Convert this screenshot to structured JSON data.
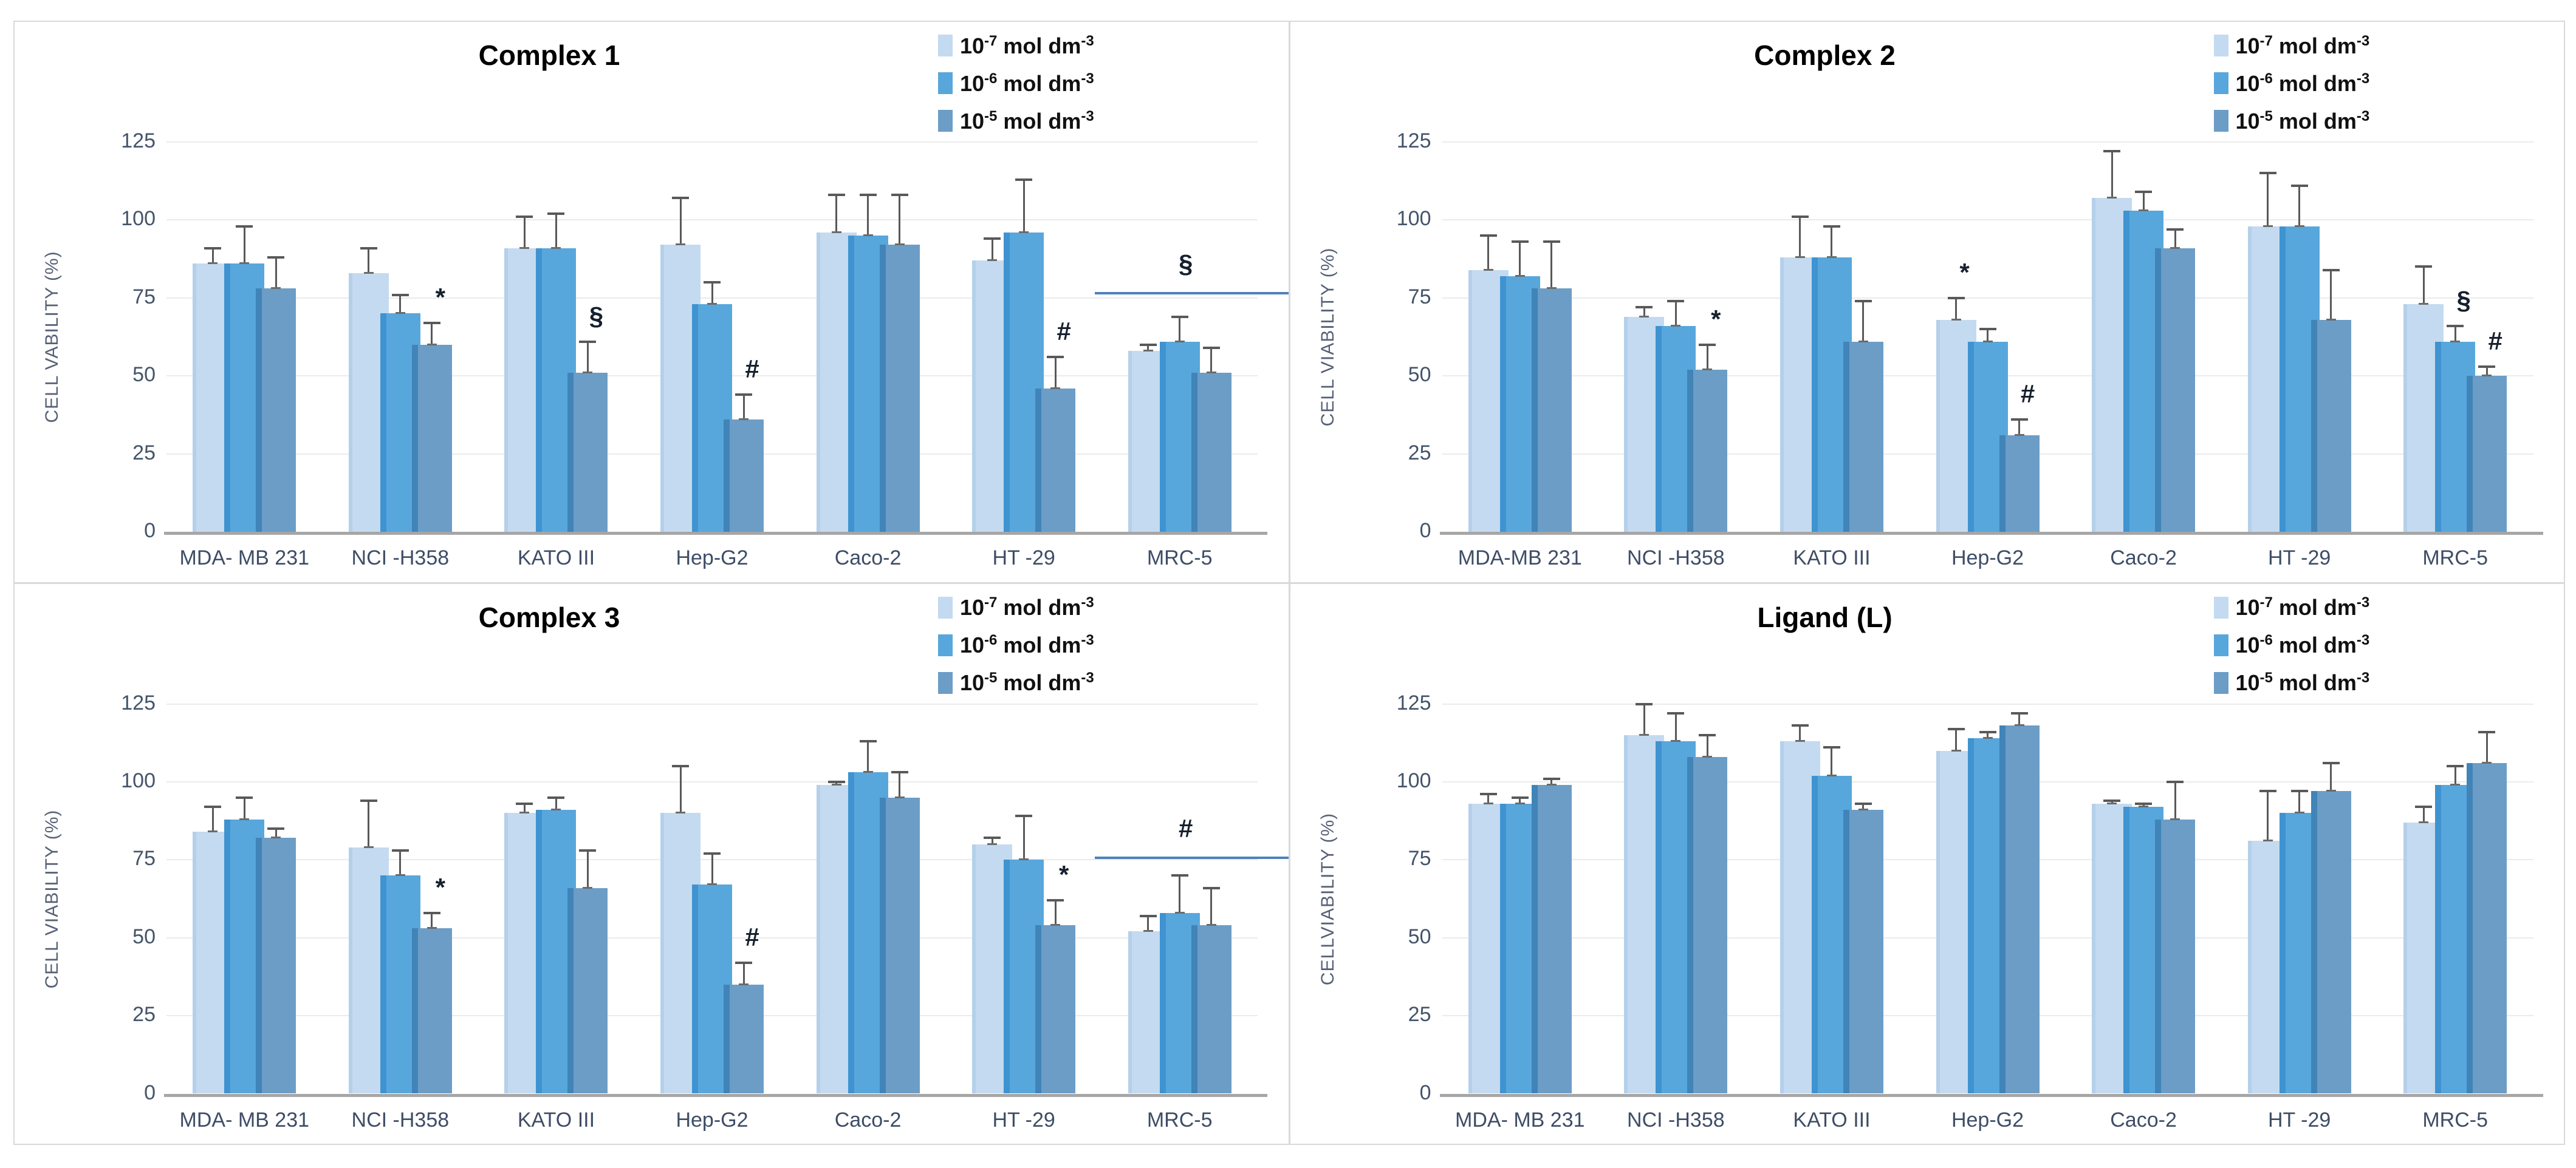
{
  "figure": {
    "layout": {
      "grid": "2x2",
      "legend_position": "top-right",
      "grid_on": true,
      "colors": {
        "series_1": "#C4DAF0",
        "series_2": "#58A7DC",
        "series_3": "#6C9DC6",
        "gridline": "#EBEBEB",
        "axis_line": "#A6A6A6",
        "error_bar": "#595959",
        "significance_line": "#4F81BD",
        "tick_text": "#44546A",
        "title_text": "#000000"
      },
      "legend_items": [
        {
          "base": "10",
          "exp": "-7",
          "unit": "mol dm",
          "unit_exp": "-3"
        },
        {
          "base": "10",
          "exp": "-6",
          "unit": "mol dm",
          "unit_exp": "-3"
        },
        {
          "base": "10",
          "exp": "-5",
          "unit": "mol dm",
          "unit_exp": "-3"
        }
      ]
    }
  },
  "chart_data": [
    {
      "type": "bar",
      "title": "Complex 1",
      "ylabel": "CELL VABILITY (%)",
      "ylim": [
        0,
        125
      ],
      "yticks": [
        0,
        25,
        50,
        75,
        100,
        125
      ],
      "categories": [
        "MDA- MB 231",
        "NCI -H358",
        "KATO III",
        "Hep-G2",
        "Caco-2",
        "HT -29",
        "MRC-5"
      ],
      "series": [
        {
          "name": "10⁻⁷ mol dm⁻³",
          "values": [
            86,
            83,
            91,
            92,
            96,
            87,
            58
          ],
          "errors": [
            5,
            8,
            10,
            15,
            12,
            7,
            2
          ],
          "ann": [
            null,
            null,
            null,
            null,
            null,
            null,
            null
          ]
        },
        {
          "name": "10⁻⁶ mol dm⁻³",
          "values": [
            86,
            70,
            91,
            73,
            95,
            96,
            61
          ],
          "errors": [
            12,
            6,
            11,
            7,
            13,
            17,
            8
          ],
          "ann": [
            null,
            null,
            null,
            null,
            null,
            null,
            null
          ]
        },
        {
          "name": "10⁻⁵ mol dm⁻³",
          "values": [
            78,
            60,
            51,
            36,
            92,
            46,
            51
          ],
          "errors": [
            10,
            7,
            10,
            8,
            16,
            10,
            8
          ],
          "ann": [
            null,
            "*",
            "§",
            "#",
            null,
            "#",
            null
          ]
        }
      ],
      "group_annotations": [
        {
          "category": "MRC-5",
          "symbol": "§",
          "line_value": 77
        }
      ]
    },
    {
      "type": "bar",
      "title": "Complex 2",
      "ylabel": "CELL VIABILITY (%)",
      "ylim": [
        0,
        125
      ],
      "yticks": [
        0,
        25,
        50,
        75,
        100,
        125
      ],
      "categories": [
        "MDA-MB 231",
        "NCI -H358",
        "KATO III",
        "Hep-G2",
        "Caco-2",
        "HT -29",
        "MRC-5"
      ],
      "series": [
        {
          "name": "10⁻⁷ mol dm⁻³",
          "values": [
            84,
            69,
            88,
            68,
            107,
            98,
            73
          ],
          "errors": [
            11,
            3,
            13,
            7,
            15,
            17,
            12
          ],
          "ann": [
            null,
            null,
            null,
            "*",
            null,
            null,
            null
          ]
        },
        {
          "name": "10⁻⁶ mol dm⁻³",
          "values": [
            82,
            66,
            88,
            61,
            103,
            98,
            61
          ],
          "errors": [
            11,
            8,
            10,
            4,
            6,
            13,
            5
          ],
          "ann": [
            null,
            null,
            null,
            null,
            null,
            null,
            "§"
          ]
        },
        {
          "name": "10⁻⁵ mol dm⁻³",
          "values": [
            78,
            52,
            61,
            31,
            91,
            68,
            50
          ],
          "errors": [
            15,
            8,
            13,
            5,
            6,
            16,
            3
          ],
          "ann": [
            null,
            "*",
            null,
            "#",
            null,
            null,
            "#"
          ]
        }
      ],
      "group_annotations": []
    },
    {
      "type": "bar",
      "title": "Complex 3",
      "ylabel": "CELL VIABILITY (%)",
      "ylim": [
        0,
        125
      ],
      "yticks": [
        0,
        25,
        50,
        75,
        100,
        125
      ],
      "categories": [
        "MDA- MB 231",
        "NCI -H358",
        "KATO III",
        "Hep-G2",
        "Caco-2",
        "HT -29",
        "MRC-5"
      ],
      "series": [
        {
          "name": "10⁻⁷ mol dm⁻³",
          "values": [
            84,
            79,
            90,
            90,
            99,
            80,
            52
          ],
          "errors": [
            8,
            15,
            3,
            15,
            1,
            2,
            5
          ],
          "ann": [
            null,
            null,
            null,
            null,
            null,
            null,
            null
          ]
        },
        {
          "name": "10⁻⁶ mol dm⁻³",
          "values": [
            88,
            70,
            91,
            67,
            103,
            75,
            58
          ],
          "errors": [
            7,
            8,
            4,
            10,
            10,
            14,
            12
          ],
          "ann": [
            null,
            null,
            null,
            null,
            null,
            null,
            null
          ]
        },
        {
          "name": "10⁻⁵ mol dm⁻³",
          "values": [
            82,
            53,
            66,
            35,
            95,
            54,
            54
          ],
          "errors": [
            3,
            5,
            12,
            7,
            8,
            8,
            12
          ],
          "ann": [
            null,
            "*",
            null,
            "#",
            null,
            "*",
            null
          ]
        }
      ],
      "group_annotations": [
        {
          "category": "MRC-5",
          "symbol": "#",
          "line_value": 76
        }
      ]
    },
    {
      "type": "bar",
      "title": "Ligand (L)",
      "ylabel": "CELLVIABILITY (%)",
      "ylim": [
        0,
        125
      ],
      "yticks": [
        0,
        25,
        50,
        75,
        100,
        125
      ],
      "categories": [
        "MDA- MB 231",
        "NCI -H358",
        "KATO III",
        "Hep-G2",
        "Caco-2",
        "HT -29",
        "MRC-5"
      ],
      "series": [
        {
          "name": "10⁻⁷ mol dm⁻³",
          "values": [
            93,
            115,
            113,
            110,
            93,
            81,
            87
          ],
          "errors": [
            3,
            10,
            5,
            7,
            1,
            16,
            5
          ],
          "ann": [
            null,
            null,
            null,
            null,
            null,
            null,
            null
          ]
        },
        {
          "name": "10⁻⁶ mol dm⁻³",
          "values": [
            93,
            113,
            102,
            114,
            92,
            90,
            99
          ],
          "errors": [
            2,
            9,
            9,
            2,
            1,
            7,
            6
          ],
          "ann": [
            null,
            null,
            null,
            null,
            null,
            null,
            null
          ]
        },
        {
          "name": "10⁻⁵ mol dm⁻³",
          "values": [
            99,
            108,
            91,
            118,
            88,
            97,
            106
          ],
          "errors": [
            2,
            7,
            2,
            4,
            12,
            9,
            10
          ],
          "ann": [
            null,
            null,
            null,
            null,
            null,
            null,
            null
          ]
        }
      ],
      "group_annotations": []
    }
  ]
}
